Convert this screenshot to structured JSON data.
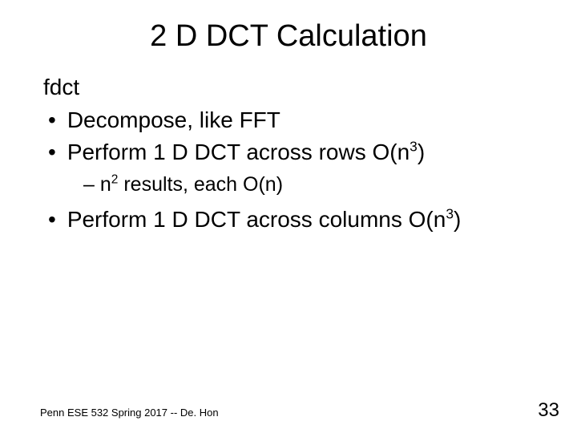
{
  "title": "2 D DCT Calculation",
  "line0": "fdct",
  "bullet1": "Decompose, like FFT",
  "bullet2_prefix": "Perform 1 D DCT across rows O(n",
  "bullet2_sup": "3",
  "bullet2_suffix": ")",
  "sub1_prefix": "– n",
  "sub1_sup": "2",
  "sub1_suffix": " results, each O(n)",
  "bullet3_prefix": "Perform 1 D DCT across columns O(n",
  "bullet3_sup": "3",
  "bullet3_suffix": ")",
  "footer_left": "Penn ESE 532 Spring 2017 -- De. Hon",
  "page_number": "33",
  "colors": {
    "background": "#ffffff",
    "text": "#000000"
  },
  "fonts": {
    "title_size": 38,
    "body_size": 28,
    "sub_size": 25,
    "footer_size": 13,
    "pagenum_size": 24
  }
}
